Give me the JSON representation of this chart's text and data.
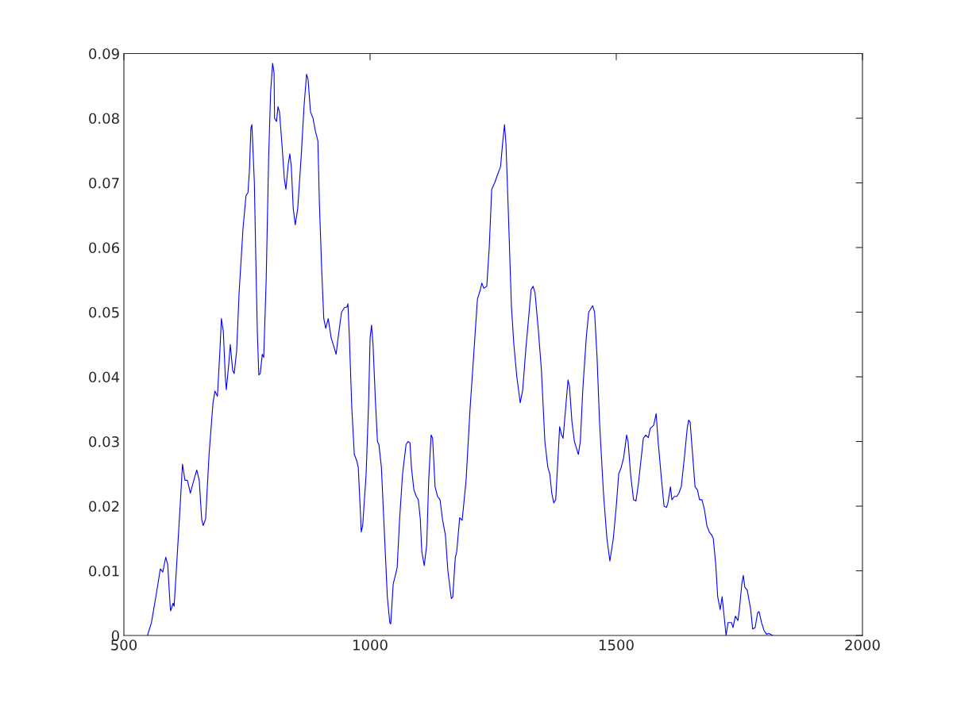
{
  "chart_data": {
    "type": "line",
    "xlim": [
      500,
      2000
    ],
    "xticks": [
      500,
      1000,
      1500,
      2000
    ],
    "ylim": [
      0,
      0.09
    ],
    "yticks": [
      0,
      0.01,
      0.02,
      0.03,
      0.04,
      0.05,
      0.06,
      0.07,
      0.08,
      0.09
    ],
    "grid": false,
    "marker": "none",
    "line_style": "solid",
    "series": [
      {
        "color": "#0000ff",
        "x": [
          548,
          556,
          566,
          574,
          579,
          585,
          589,
          594,
          595,
          600,
          602,
          608,
          615,
          619,
          624,
          629,
          635,
          642,
          648,
          653,
          658,
          661,
          666,
          673,
          681,
          685,
          690,
          695,
          698,
          702,
          706,
          708,
          713,
          716,
          721,
          724,
          729,
          734,
          742,
          748,
          752,
          755,
          758,
          760,
          765,
          768,
          771,
          774,
          777,
          781,
          784,
          789,
          794,
          798,
          802,
          805,
          806,
          810,
          813,
          816,
          821,
          826,
          829,
          834,
          837,
          840,
          844,
          848,
          853,
          860,
          866,
          871,
          874,
          879,
          884,
          889,
          894,
          897,
          902,
          906,
          910,
          915,
          921,
          926,
          931,
          935,
          942,
          948,
          953,
          955,
          958,
          963,
          968,
          973,
          976,
          981,
          982,
          985,
          992,
          997,
          1000,
          1003,
          1006,
          1011,
          1015,
          1018,
          1023,
          1029,
          1035,
          1040,
          1042,
          1047,
          1052,
          1055,
          1060,
          1066,
          1073,
          1077,
          1081,
          1084,
          1089,
          1094,
          1098,
          1102,
          1105,
          1110,
          1115,
          1119,
          1124,
          1127,
          1132,
          1137,
          1142,
          1147,
          1153,
          1158,
          1165,
          1168,
          1173,
          1176,
          1182,
          1187,
          1195,
          1203,
          1211,
          1218,
          1224,
          1227,
          1231,
          1237,
          1242,
          1247,
          1253,
          1260,
          1265,
          1269,
          1273,
          1276,
          1281,
          1287,
          1292,
          1298,
          1305,
          1310,
          1316,
          1323,
          1327,
          1331,
          1335,
          1342,
          1348,
          1355,
          1361,
          1365,
          1369,
          1373,
          1377,
          1382,
          1385,
          1389,
          1392,
          1397,
          1402,
          1405,
          1410,
          1415,
          1419,
          1423,
          1427,
          1432,
          1439,
          1444,
          1448,
          1452,
          1456,
          1461,
          1466,
          1474,
          1481,
          1487,
          1494,
          1500,
          1505,
          1510,
          1515,
          1521,
          1524,
          1529,
          1535,
          1540,
          1545,
          1550,
          1555,
          1560,
          1565,
          1569,
          1576,
          1581,
          1585,
          1592,
          1597,
          1602,
          1605,
          1610,
          1613,
          1618,
          1623,
          1627,
          1632,
          1639,
          1644,
          1647,
          1650,
          1655,
          1660,
          1665,
          1669,
          1674,
          1679,
          1684,
          1689,
          1694,
          1697,
          1702,
          1706,
          1711,
          1715,
          1719,
          1723,
          1727,
          1734,
          1737,
          1742,
          1747,
          1750,
          1755,
          1758,
          1761,
          1766,
          1773,
          1777,
          1782,
          1787,
          1790,
          1795,
          1800,
          1805,
          1810,
          1818
        ],
        "values": [
          0.0,
          0.002,
          0.0065,
          0.0103,
          0.0098,
          0.0121,
          0.011,
          0.0045,
          0.0038,
          0.005,
          0.0045,
          0.012,
          0.021,
          0.0265,
          0.024,
          0.024,
          0.022,
          0.024,
          0.0256,
          0.024,
          0.018,
          0.017,
          0.018,
          0.028,
          0.036,
          0.0378,
          0.037,
          0.044,
          0.049,
          0.047,
          0.04,
          0.038,
          0.042,
          0.045,
          0.041,
          0.0405,
          0.044,
          0.053,
          0.063,
          0.068,
          0.0685,
          0.072,
          0.0785,
          0.079,
          0.07,
          0.058,
          0.047,
          0.0403,
          0.0405,
          0.0435,
          0.043,
          0.055,
          0.074,
          0.084,
          0.0885,
          0.087,
          0.08,
          0.0795,
          0.0818,
          0.081,
          0.076,
          0.0705,
          0.069,
          0.073,
          0.0745,
          0.0725,
          0.066,
          0.0635,
          0.066,
          0.074,
          0.082,
          0.0868,
          0.086,
          0.081,
          0.08,
          0.078,
          0.0765,
          0.067,
          0.056,
          0.049,
          0.0475,
          0.049,
          0.046,
          0.0448,
          0.0435,
          0.046,
          0.05,
          0.0507,
          0.0508,
          0.0513,
          0.046,
          0.035,
          0.028,
          0.027,
          0.026,
          0.018,
          0.016,
          0.017,
          0.025,
          0.036,
          0.046,
          0.048,
          0.045,
          0.036,
          0.03,
          0.0295,
          0.026,
          0.016,
          0.006,
          0.002,
          0.0018,
          0.008,
          0.0095,
          0.0105,
          0.018,
          0.025,
          0.0295,
          0.03,
          0.0298,
          0.026,
          0.0225,
          0.0215,
          0.021,
          0.018,
          0.013,
          0.0108,
          0.014,
          0.024,
          0.031,
          0.0305,
          0.023,
          0.0215,
          0.021,
          0.018,
          0.0155,
          0.01,
          0.0057,
          0.006,
          0.012,
          0.013,
          0.0182,
          0.0178,
          0.024,
          0.035,
          0.044,
          0.052,
          0.0535,
          0.0545,
          0.0537,
          0.054,
          0.06,
          0.069,
          0.07,
          0.0715,
          0.0725,
          0.076,
          0.079,
          0.076,
          0.065,
          0.051,
          0.045,
          0.04,
          0.036,
          0.038,
          0.044,
          0.05,
          0.0535,
          0.054,
          0.053,
          0.047,
          0.041,
          0.03,
          0.026,
          0.025,
          0.022,
          0.0205,
          0.021,
          0.028,
          0.0323,
          0.031,
          0.0305,
          0.035,
          0.0395,
          0.0385,
          0.033,
          0.03,
          0.029,
          0.028,
          0.03,
          0.038,
          0.046,
          0.05,
          0.0505,
          0.051,
          0.05,
          0.043,
          0.033,
          0.022,
          0.015,
          0.0115,
          0.015,
          0.02,
          0.025,
          0.026,
          0.0275,
          0.031,
          0.03,
          0.025,
          0.021,
          0.0208,
          0.0235,
          0.027,
          0.0305,
          0.031,
          0.0306,
          0.032,
          0.0325,
          0.0343,
          0.03,
          0.024,
          0.02,
          0.0198,
          0.0205,
          0.023,
          0.021,
          0.0215,
          0.0215,
          0.022,
          0.023,
          0.028,
          0.032,
          0.0333,
          0.033,
          0.028,
          0.023,
          0.0225,
          0.021,
          0.021,
          0.0195,
          0.017,
          0.016,
          0.0155,
          0.015,
          0.011,
          0.006,
          0.004,
          0.006,
          0.003,
          0.0,
          0.002,
          0.002,
          0.0012,
          0.003,
          0.0023,
          0.004,
          0.008,
          0.0093,
          0.0075,
          0.007,
          0.004,
          0.001,
          0.0012,
          0.0035,
          0.0037,
          0.002,
          0.0008,
          0.0002,
          0.0003,
          0.0
        ]
      }
    ]
  }
}
